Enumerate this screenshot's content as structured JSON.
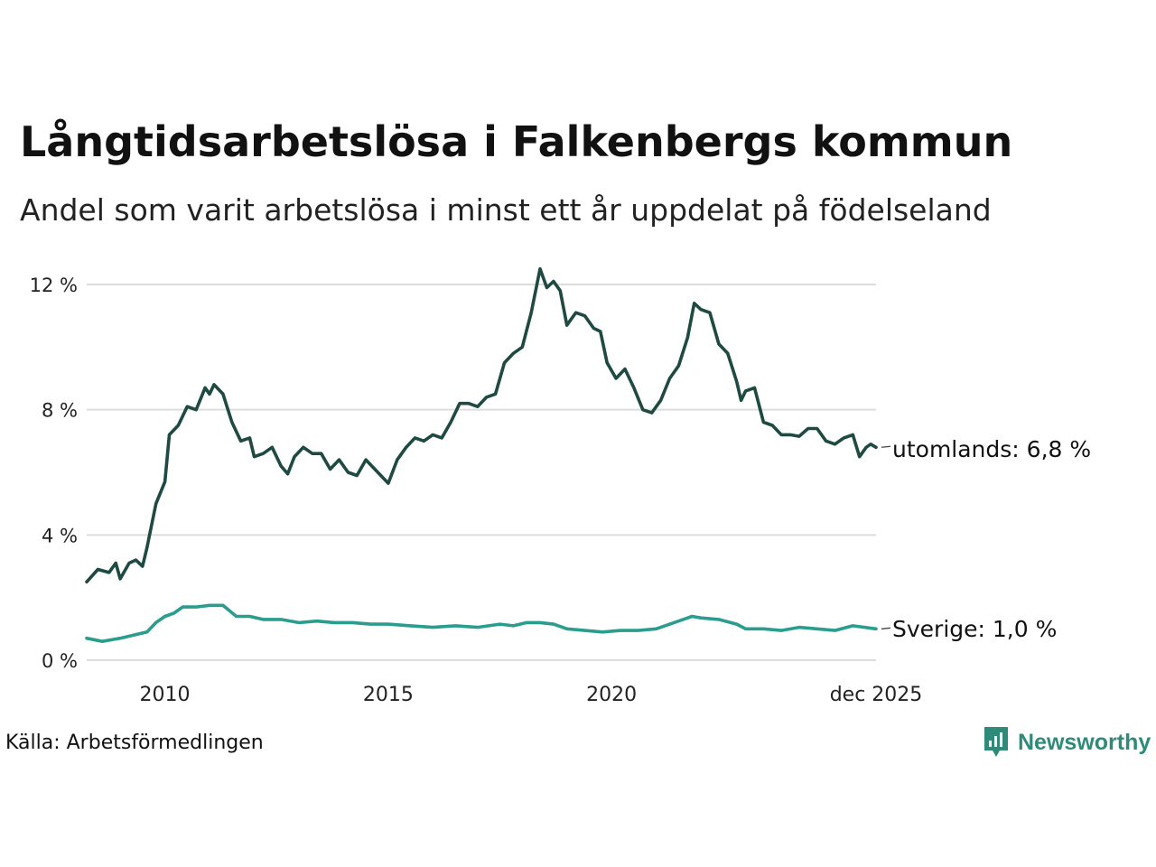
{
  "title": "Långtidsarbetslösa i Falkenbergs kommun",
  "subtitle": "Andel som varit arbetslösa i minst ett år uppdelat på födelseland",
  "source": "Källa: Arbetsförmedlingen",
  "brand": "Newsworthy",
  "colors": {
    "utomlands": "#1f4a42",
    "sverige": "#2a9d8f",
    "grid": "#dddddd",
    "brand": "#2e8b7a"
  },
  "chart_data": {
    "type": "line",
    "title": "Långtidsarbetslösa i Falkenbergs kommun",
    "xlabel": "",
    "ylabel": "",
    "x_unit": "year",
    "xlim": [
      2008.25,
      2025.92
    ],
    "ylim": [
      0,
      12
    ],
    "y_ticks": [
      {
        "value": 0,
        "label": "0 %"
      },
      {
        "value": 4,
        "label": "4 %"
      },
      {
        "value": 8,
        "label": "8 %"
      },
      {
        "value": 12,
        "label": "12 %"
      }
    ],
    "x_ticks": [
      {
        "value": 2010,
        "label": "2010"
      },
      {
        "value": 2015,
        "label": "2015"
      },
      {
        "value": 2020,
        "label": "2020"
      },
      {
        "value": 2025.92,
        "label": "dec 2025"
      }
    ],
    "grid": true,
    "legend": "end-of-line labels",
    "series": [
      {
        "name": "utomlands",
        "end_label": "utomlands: 6,8 %",
        "points": [
          [
            2008.25,
            2.5
          ],
          [
            2008.5,
            2.9
          ],
          [
            2008.75,
            2.8
          ],
          [
            2008.9,
            3.1
          ],
          [
            2009.0,
            2.6
          ],
          [
            2009.2,
            3.1
          ],
          [
            2009.35,
            3.2
          ],
          [
            2009.5,
            3.0
          ],
          [
            2009.6,
            3.6
          ],
          [
            2009.8,
            5.0
          ],
          [
            2010.0,
            5.7
          ],
          [
            2010.1,
            7.2
          ],
          [
            2010.3,
            7.5
          ],
          [
            2010.5,
            8.1
          ],
          [
            2010.7,
            8.0
          ],
          [
            2010.9,
            8.7
          ],
          [
            2011.0,
            8.5
          ],
          [
            2011.1,
            8.8
          ],
          [
            2011.3,
            8.5
          ],
          [
            2011.5,
            7.6
          ],
          [
            2011.7,
            7.0
          ],
          [
            2011.9,
            7.1
          ],
          [
            2012.0,
            6.5
          ],
          [
            2012.2,
            6.6
          ],
          [
            2012.4,
            6.8
          ],
          [
            2012.6,
            6.2
          ],
          [
            2012.75,
            5.95
          ],
          [
            2012.9,
            6.5
          ],
          [
            2013.1,
            6.8
          ],
          [
            2013.3,
            6.6
          ],
          [
            2013.5,
            6.6
          ],
          [
            2013.7,
            6.1
          ],
          [
            2013.9,
            6.4
          ],
          [
            2014.1,
            6.0
          ],
          [
            2014.3,
            5.9
          ],
          [
            2014.5,
            6.4
          ],
          [
            2014.7,
            6.1
          ],
          [
            2014.9,
            5.8
          ],
          [
            2015.0,
            5.65
          ],
          [
            2015.2,
            6.4
          ],
          [
            2015.4,
            6.8
          ],
          [
            2015.6,
            7.1
          ],
          [
            2015.8,
            7.0
          ],
          [
            2016.0,
            7.2
          ],
          [
            2016.2,
            7.1
          ],
          [
            2016.4,
            7.6
          ],
          [
            2016.6,
            8.2
          ],
          [
            2016.8,
            8.2
          ],
          [
            2017.0,
            8.1
          ],
          [
            2017.2,
            8.4
          ],
          [
            2017.4,
            8.5
          ],
          [
            2017.6,
            9.5
          ],
          [
            2017.8,
            9.8
          ],
          [
            2018.0,
            10.0
          ],
          [
            2018.2,
            11.1
          ],
          [
            2018.4,
            12.5
          ],
          [
            2018.55,
            11.9
          ],
          [
            2018.7,
            12.1
          ],
          [
            2018.85,
            11.8
          ],
          [
            2019.0,
            10.7
          ],
          [
            2019.2,
            11.1
          ],
          [
            2019.4,
            11.0
          ],
          [
            2019.6,
            10.6
          ],
          [
            2019.75,
            10.5
          ],
          [
            2019.9,
            9.5
          ],
          [
            2020.1,
            9.0
          ],
          [
            2020.3,
            9.3
          ],
          [
            2020.5,
            8.7
          ],
          [
            2020.7,
            8.0
          ],
          [
            2020.9,
            7.9
          ],
          [
            2021.1,
            8.3
          ],
          [
            2021.3,
            9.0
          ],
          [
            2021.5,
            9.4
          ],
          [
            2021.7,
            10.3
          ],
          [
            2021.85,
            11.4
          ],
          [
            2022.0,
            11.2
          ],
          [
            2022.2,
            11.1
          ],
          [
            2022.4,
            10.1
          ],
          [
            2022.6,
            9.8
          ],
          [
            2022.8,
            8.9
          ],
          [
            2022.9,
            8.3
          ],
          [
            2023.0,
            8.6
          ],
          [
            2023.2,
            8.7
          ],
          [
            2023.4,
            7.6
          ],
          [
            2023.6,
            7.5
          ],
          [
            2023.8,
            7.2
          ],
          [
            2024.0,
            7.2
          ],
          [
            2024.2,
            7.15
          ],
          [
            2024.4,
            7.4
          ],
          [
            2024.6,
            7.4
          ],
          [
            2024.8,
            7.0
          ],
          [
            2025.0,
            6.9
          ],
          [
            2025.2,
            7.1
          ],
          [
            2025.4,
            7.2
          ],
          [
            2025.55,
            6.5
          ],
          [
            2025.7,
            6.8
          ],
          [
            2025.8,
            6.9
          ],
          [
            2025.92,
            6.8
          ]
        ]
      },
      {
        "name": "Sverige",
        "end_label": "Sverige: 1,0 %",
        "points": [
          [
            2008.25,
            0.7
          ],
          [
            2008.6,
            0.6
          ],
          [
            2009.0,
            0.7
          ],
          [
            2009.3,
            0.8
          ],
          [
            2009.6,
            0.9
          ],
          [
            2009.8,
            1.2
          ],
          [
            2010.0,
            1.4
          ],
          [
            2010.2,
            1.5
          ],
          [
            2010.4,
            1.7
          ],
          [
            2010.7,
            1.7
          ],
          [
            2011.0,
            1.75
          ],
          [
            2011.3,
            1.75
          ],
          [
            2011.6,
            1.4
          ],
          [
            2011.9,
            1.4
          ],
          [
            2012.2,
            1.3
          ],
          [
            2012.6,
            1.3
          ],
          [
            2013.0,
            1.2
          ],
          [
            2013.4,
            1.25
          ],
          [
            2013.8,
            1.2
          ],
          [
            2014.2,
            1.2
          ],
          [
            2014.6,
            1.15
          ],
          [
            2015.0,
            1.15
          ],
          [
            2015.5,
            1.1
          ],
          [
            2016.0,
            1.05
          ],
          [
            2016.5,
            1.1
          ],
          [
            2017.0,
            1.05
          ],
          [
            2017.5,
            1.15
          ],
          [
            2017.8,
            1.1
          ],
          [
            2018.1,
            1.2
          ],
          [
            2018.4,
            1.2
          ],
          [
            2018.7,
            1.15
          ],
          [
            2019.0,
            1.0
          ],
          [
            2019.4,
            0.95
          ],
          [
            2019.8,
            0.9
          ],
          [
            2020.2,
            0.95
          ],
          [
            2020.6,
            0.95
          ],
          [
            2021.0,
            1.0
          ],
          [
            2021.4,
            1.2
          ],
          [
            2021.8,
            1.4
          ],
          [
            2022.0,
            1.35
          ],
          [
            2022.4,
            1.3
          ],
          [
            2022.8,
            1.15
          ],
          [
            2023.0,
            1.0
          ],
          [
            2023.4,
            1.0
          ],
          [
            2023.8,
            0.95
          ],
          [
            2024.2,
            1.05
          ],
          [
            2024.6,
            1.0
          ],
          [
            2025.0,
            0.95
          ],
          [
            2025.4,
            1.1
          ],
          [
            2025.92,
            1.0
          ]
        ]
      }
    ]
  }
}
